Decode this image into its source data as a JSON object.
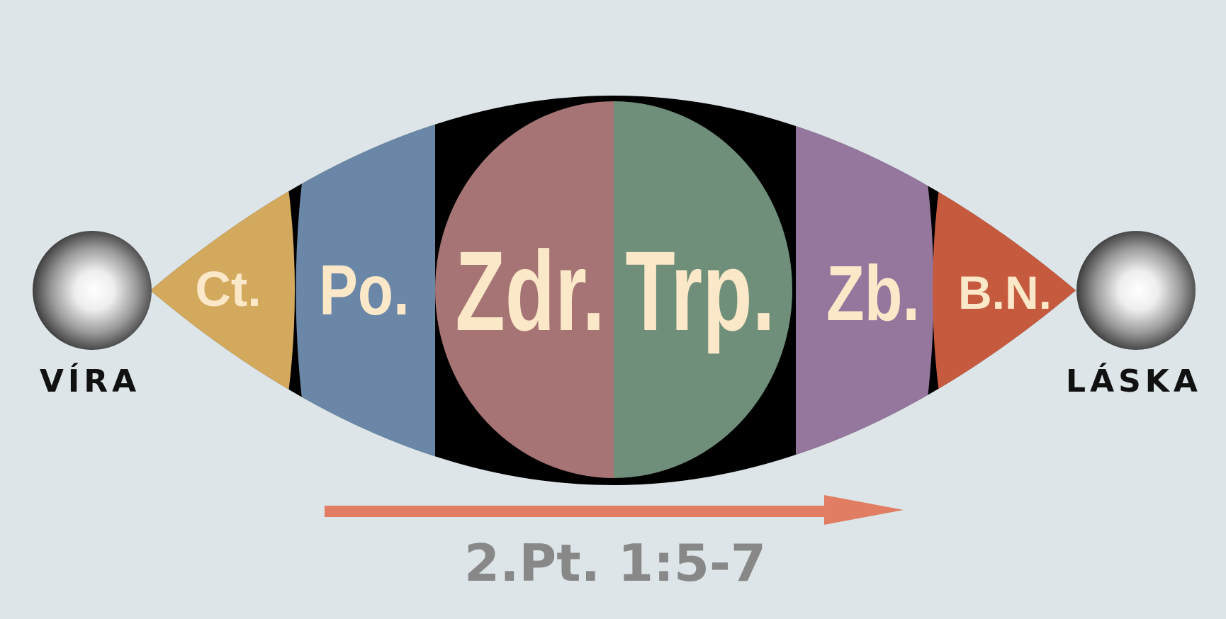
{
  "left_node": {
    "label": "VÍRA"
  },
  "right_node": {
    "label": "LÁSKA"
  },
  "segments": [
    {
      "label": "Ct.",
      "color": "#d3a95e"
    },
    {
      "label": "Po.",
      "color": "#6a87a7"
    },
    {
      "label": "Zdr.",
      "color": "#a67474"
    },
    {
      "label": "Trp.",
      "color": "#6f8f7a"
    },
    {
      "label": "Zb.",
      "color": "#95769d"
    },
    {
      "label": "B.N.",
      "color": "#c65a3f"
    }
  ],
  "reference": {
    "label": "2.Pt. 1:5-7"
  },
  "colors": {
    "background": "#dde5e8",
    "lens_outline": "#000000",
    "label_text": "#fbe8c8",
    "arrow": "#e07d62",
    "reference_text": "#888888",
    "side_text": "#111111"
  }
}
